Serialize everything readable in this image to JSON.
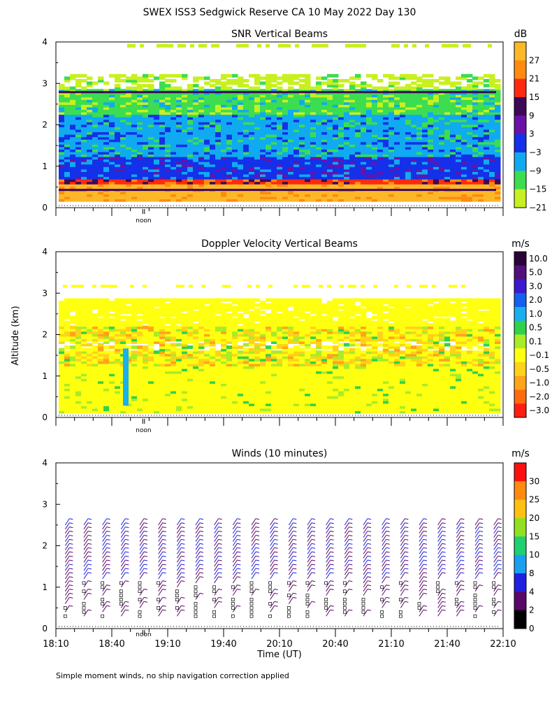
{
  "title": "SWEX ISS3 Sedgwick Reserve CA  10 May 2022 Day 130",
  "shared_ylabel": "Altitude (km)",
  "noon_label": "noon",
  "footer": "Simple moment winds, no ship navigation correction applied",
  "xaxis": {
    "label": "Time (UT)",
    "ticks": [
      "18:10",
      "18:40",
      "19:10",
      "19:40",
      "20:10",
      "20:40",
      "21:10",
      "21:40",
      "22:10"
    ]
  },
  "panels": [
    {
      "title": "SNR Vertical Beams",
      "unit": "dB",
      "colorbar_labels": [
        "27",
        "21",
        "15",
        "9",
        "3",
        "−3",
        "−9",
        "−15",
        "−21"
      ],
      "colorbar_colors": [
        "#fdb828",
        "#ff8a10",
        "#ff2a10",
        "#3d0858",
        "#6a12a8",
        "#1430e8",
        "#10aaf0",
        "#3cdd50",
        "#c8f020"
      ]
    },
    {
      "title": "Doppler Velocity Vertical Beams",
      "unit": "m/s",
      "colorbar_labels": [
        "10.0",
        "5.0",
        "3.0",
        "2.0",
        "1.0",
        "0.5",
        "0.1",
        "−0.1",
        "−0.5",
        "−1.0",
        "−2.0",
        "−3.0"
      ],
      "colorbar_colors": [
        "#2a0338",
        "#52107c",
        "#3a1ad0",
        "#1460f0",
        "#18b0f0",
        "#2ed34a",
        "#a8ec28",
        "#ffff10",
        "#ffd21a",
        "#ffa41a",
        "#ff6a10",
        "#ff1e10"
      ]
    },
    {
      "title": "Winds (10 minutes)",
      "unit": "m/s",
      "colorbar_labels": [
        "30",
        "25",
        "20",
        "15",
        "10",
        "8",
        "4",
        "2",
        "0"
      ],
      "colorbar_colors": [
        "#ff1010",
        "#ff8a10",
        "#ffc010",
        "#90e020",
        "#20d070",
        "#1aa0f0",
        "#1f20e0",
        "#5a0868",
        "#000000"
      ]
    }
  ],
  "chart_data": [
    {
      "type": "heatmap",
      "title": "SNR Vertical Beams",
      "ylabel": "Altitude (km)",
      "xlabel": "Time (UT)",
      "ylim": [
        0,
        4
      ],
      "yticks": [
        0,
        1,
        2,
        3,
        4
      ],
      "x_ticks": [
        "18:10",
        "18:40",
        "19:10",
        "19:40",
        "20:10",
        "20:40",
        "21:10",
        "21:40",
        "22:10"
      ],
      "colorbar_unit": "dB",
      "colorbar_levels": [
        27,
        21,
        15,
        9,
        3,
        -3,
        -9,
        -15,
        -21
      ],
      "layers_by_altitude_km": [
        {
          "from": 0.15,
          "to": 0.55,
          "dB": 27
        },
        {
          "from": 0.55,
          "to": 0.65,
          "dB": 15
        },
        {
          "from": 0.65,
          "to": 1.2,
          "dB": -3
        },
        {
          "from": 1.2,
          "to": 2.2,
          "dB": -9
        },
        {
          "from": 2.2,
          "to": 2.8,
          "dB": -15
        },
        {
          "from": 2.8,
          "to": 3.2,
          "dB": -21
        }
      ]
    },
    {
      "type": "heatmap",
      "title": "Doppler Velocity Vertical Beams",
      "ylabel": "Altitude (km)",
      "xlabel": "Time (UT)",
      "ylim": [
        0,
        4
      ],
      "yticks": [
        0,
        1,
        2,
        3,
        4
      ],
      "x_ticks": [
        "18:10",
        "18:40",
        "19:10",
        "19:40",
        "20:10",
        "20:40",
        "21:10",
        "21:40",
        "22:10"
      ],
      "colorbar_unit": "m/s",
      "colorbar_levels": [
        10.0,
        5.0,
        3.0,
        2.0,
        1.0,
        0.5,
        0.1,
        -0.1,
        -0.5,
        -1.0,
        -2.0,
        -3.0
      ],
      "layers_by_altitude_km": [
        {
          "from": 0.1,
          "to": 1.2,
          "m_s": -0.1
        },
        {
          "from": 1.2,
          "to": 2.2,
          "m_s": -0.5
        },
        {
          "from": 2.2,
          "to": 2.85,
          "m_s": -0.1
        }
      ]
    },
    {
      "type": "scatter",
      "title": "Winds (10 minutes)",
      "ylabel": "Altitude (km)",
      "xlabel": "Time (UT)",
      "ylim": [
        0,
        4
      ],
      "yticks": [
        0,
        1,
        2,
        3,
        4
      ],
      "x_ticks": [
        "18:10",
        "18:40",
        "19:10",
        "19:40",
        "20:10",
        "20:40",
        "21:10",
        "21:40",
        "22:10"
      ],
      "colorbar_unit": "m/s",
      "colorbar_levels": [
        30,
        25,
        20,
        15,
        10,
        8,
        4,
        2,
        0
      ],
      "profile_times": [
        "18:15",
        "18:25",
        "18:35",
        "18:45",
        "18:55",
        "19:05",
        "19:15",
        "19:25",
        "19:35",
        "19:45",
        "19:55",
        "20:05",
        "20:15",
        "20:25",
        "20:35",
        "20:45",
        "20:55",
        "21:05",
        "21:15",
        "21:25",
        "21:35",
        "21:45",
        "21:55",
        "22:05"
      ]
    }
  ]
}
